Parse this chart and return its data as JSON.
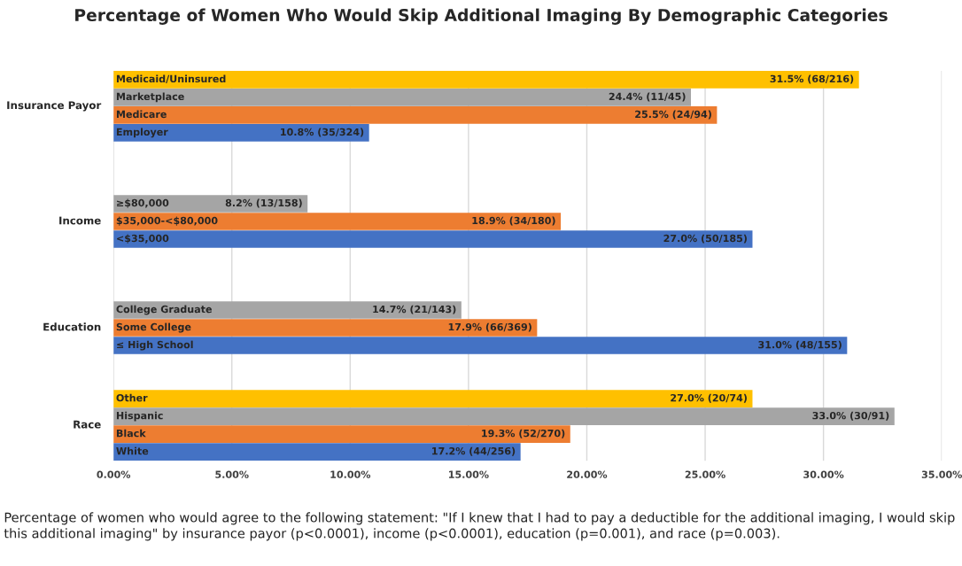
{
  "chart_data": {
    "type": "bar",
    "orientation": "horizontal",
    "title": "Percentage of Women Who Would Skip Additional Imaging By Demographic Categories",
    "categories": [
      "Medicaid/Uninsured",
      "Marketplace",
      "Medicare",
      "Employer",
      null,
      null,
      null,
      "≥$80,000",
      "$35,000-<$80,000",
      "<$35,000",
      null,
      null,
      null,
      "College Graduate",
      "Some College",
      "≤ High School",
      null,
      null,
      "Other",
      "Hispanic",
      "Black",
      "White"
    ],
    "series": [
      {
        "values": [
          31.5,
          24.4,
          25.5,
          10.8,
          null,
          null,
          null,
          8.2,
          18.9,
          27.0,
          null,
          null,
          null,
          14.7,
          17.9,
          31.0,
          null,
          null,
          27.0,
          33.0,
          19.3,
          17.2
        ],
        "colors": [
          "#ffc000",
          "#a5a5a5",
          "#ed7d31",
          "#4472c4",
          null,
          null,
          null,
          "#a5a5a5",
          "#ed7d31",
          "#4472c4",
          null,
          null,
          null,
          "#a5a5a5",
          "#ed7d31",
          "#4472c4",
          null,
          null,
          "#ffc000",
          "#a5a5a5",
          "#ed7d31",
          "#4472c4"
        ],
        "value_labels": [
          "31.5% (68/216)",
          "24.4% (11/45)",
          "25.5% (24/94)",
          "10.8% (35/324)",
          null,
          null,
          null,
          "8.2% (13/158)",
          "18.9% (34/180)",
          "27.0% (50/185)",
          null,
          null,
          null,
          "14.7% (21/143)",
          "17.9% (66/369)",
          "31.0% (48/155)",
          null,
          null,
          "27.0% (20/74)",
          "33.0% (30/91)",
          "19.3% (52/270)",
          "17.2% (44/256)"
        ]
      }
    ],
    "xlim": [
      0,
      35
    ],
    "xticks": [
      {
        "value": 0,
        "label": "0.00%"
      },
      {
        "value": 5,
        "label": "5.00%"
      },
      {
        "value": 10,
        "label": "10.00%"
      },
      {
        "value": 15,
        "label": "15.00%"
      },
      {
        "value": 20,
        "label": "20.00%"
      },
      {
        "value": 25,
        "label": "25.00%"
      },
      {
        "value": 30,
        "label": "30.00%"
      },
      {
        "value": 35,
        "label": "35.00%"
      }
    ],
    "grid": "x",
    "annotations": [
      "Insurance Payor",
      "Income",
      "Education",
      "Race",
      "Percentage of women who would agree to the following statement: \"If I knew that I had to pay a deductible for the additional imaging, I would skip this additional imaging\" by insurance payor (p<0.0001), income (p<0.0001), education (p=0.001), and race (p=0.003)."
    ]
  }
}
